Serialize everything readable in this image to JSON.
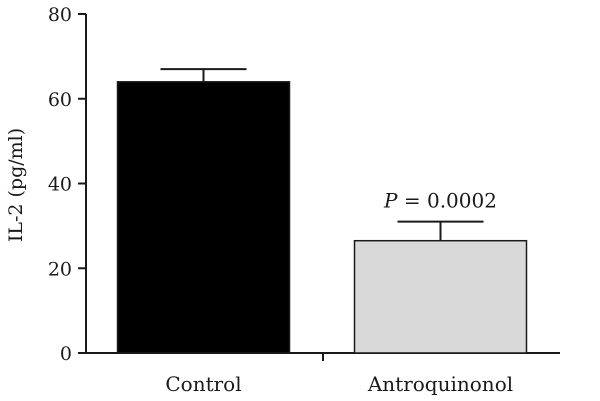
{
  "chart_data": {
    "type": "bar",
    "categories": [
      "Control",
      "Antroquinonol"
    ],
    "values": [
      64,
      26.5
    ],
    "error_upper": [
      67,
      31
    ],
    "ylabel": "IL-2 (pg/ml)",
    "xlabel": "",
    "ylim": [
      0,
      80
    ],
    "yticks": [
      0,
      20,
      40,
      60,
      80
    ],
    "bar_colors": [
      "#000000",
      "#d9d9d9"
    ],
    "annotation": {
      "italic_part": "P",
      "rest": " = 0.0002",
      "category": "Antroquinonol"
    },
    "grid": false
  }
}
